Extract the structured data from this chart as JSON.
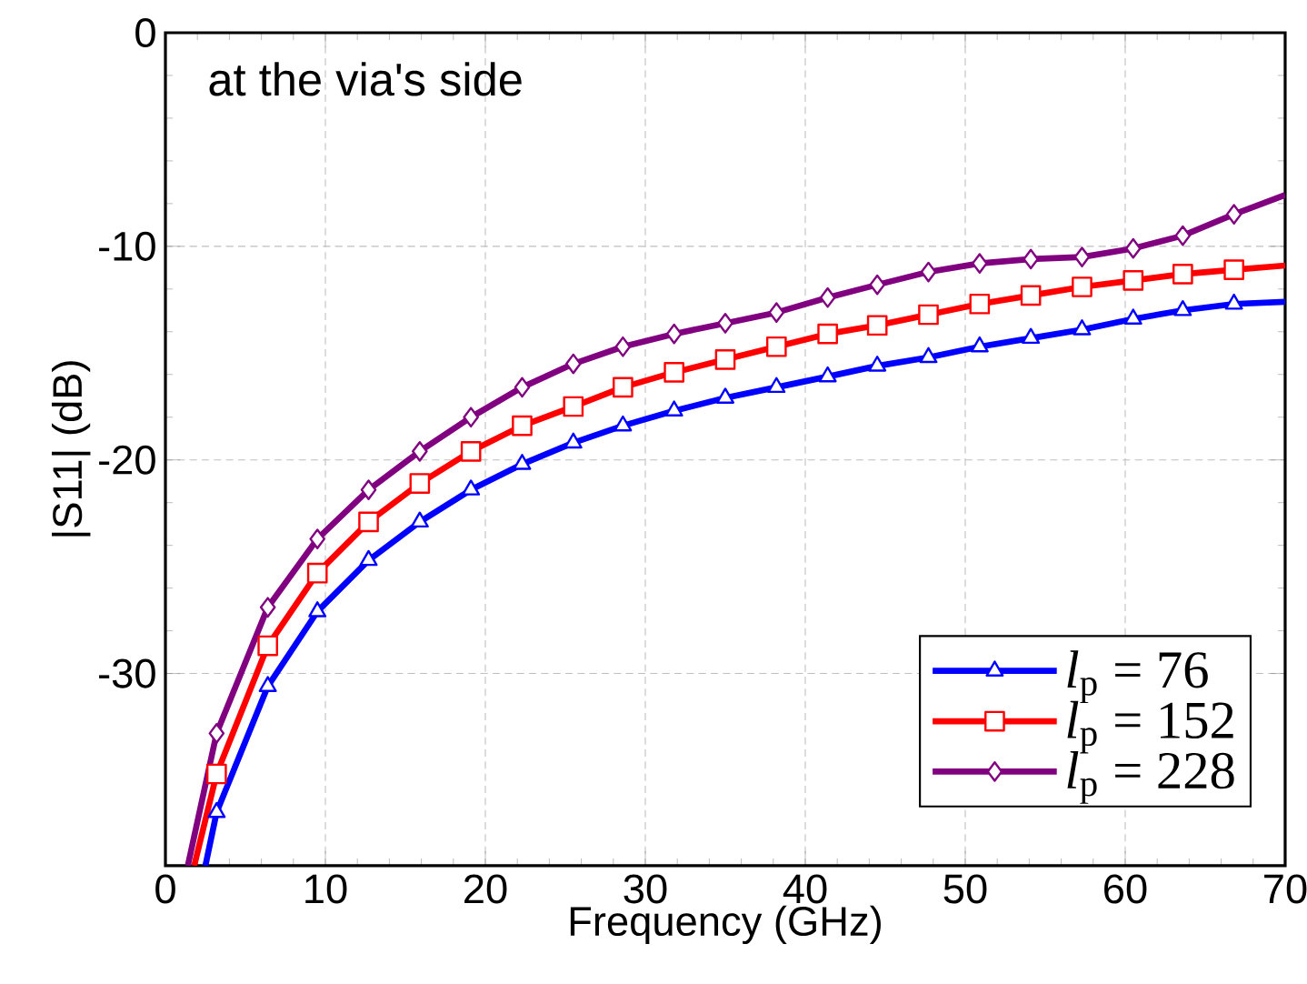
{
  "chart_data": {
    "type": "line",
    "xlabel": "Frequency (GHz)",
    "ylabel": "|S11| (dB)",
    "annotations": [
      "at the via's side"
    ],
    "xlim": [
      0,
      70
    ],
    "ylim": [
      -39,
      0
    ],
    "xticks": [
      0,
      10,
      20,
      30,
      40,
      50,
      60,
      70
    ],
    "yticks": [
      -30,
      -20,
      -10,
      0
    ],
    "grid": true,
    "legend": "bottom right",
    "line_style": "solid",
    "series": [
      {
        "name": "*l*$_{p}$ = 76",
        "color": "#0000ff",
        "marker": "triangle",
        "x": [
          2.5,
          3.2,
          6.4,
          9.5,
          12.7,
          15.9,
          19.1,
          22.3,
          25.5,
          28.6,
          31.8,
          35.0,
          38.2,
          41.4,
          44.5,
          47.7,
          50.9,
          54.1,
          57.3,
          60.5,
          63.6,
          66.8,
          70
        ],
        "values": [
          -39,
          -36.5,
          -30.6,
          -27.1,
          -24.7,
          -22.9,
          -21.4,
          -20.2,
          -19.2,
          -18.4,
          -17.7,
          -17.1,
          -16.6,
          -16.1,
          -15.6,
          -15.2,
          -14.7,
          -14.3,
          -13.9,
          -13.4,
          -13.0,
          -12.7,
          -12.6
        ]
      },
      {
        "name": "*l*$_{p}$ = 152",
        "color": "#ff0000",
        "marker": "square",
        "x": [
          1.8,
          3.2,
          6.4,
          9.5,
          12.7,
          15.9,
          19.1,
          22.3,
          25.5,
          28.6,
          31.8,
          35.0,
          38.2,
          41.4,
          44.5,
          47.7,
          50.9,
          54.1,
          57.3,
          60.5,
          63.6,
          66.8,
          70
        ],
        "values": [
          -39,
          -34.7,
          -28.7,
          -25.3,
          -22.9,
          -21.1,
          -19.6,
          -18.4,
          -17.5,
          -16.6,
          -15.9,
          -15.3,
          -14.7,
          -14.1,
          -13.7,
          -13.2,
          -12.7,
          -12.3,
          -11.9,
          -11.6,
          -11.3,
          -11.1,
          -10.9
        ]
      },
      {
        "name": "*l*$_{p}$ = 228",
        "color": "#800080",
        "marker": "diamond",
        "x": [
          1.4,
          3.2,
          6.4,
          9.5,
          12.7,
          15.9,
          19.1,
          22.3,
          25.5,
          28.6,
          31.8,
          35.0,
          38.2,
          41.4,
          44.5,
          47.7,
          50.9,
          54.1,
          57.3,
          60.5,
          63.6,
          66.8,
          70
        ],
        "values": [
          -39,
          -32.8,
          -26.9,
          -23.7,
          -21.4,
          -19.6,
          -18.0,
          -16.6,
          -15.5,
          -14.7,
          -14.1,
          -13.6,
          -13.1,
          -12.4,
          -11.8,
          -11.2,
          -10.8,
          -10.6,
          -10.5,
          -10.1,
          -9.5,
          -8.5,
          -7.6
        ]
      }
    ]
  }
}
